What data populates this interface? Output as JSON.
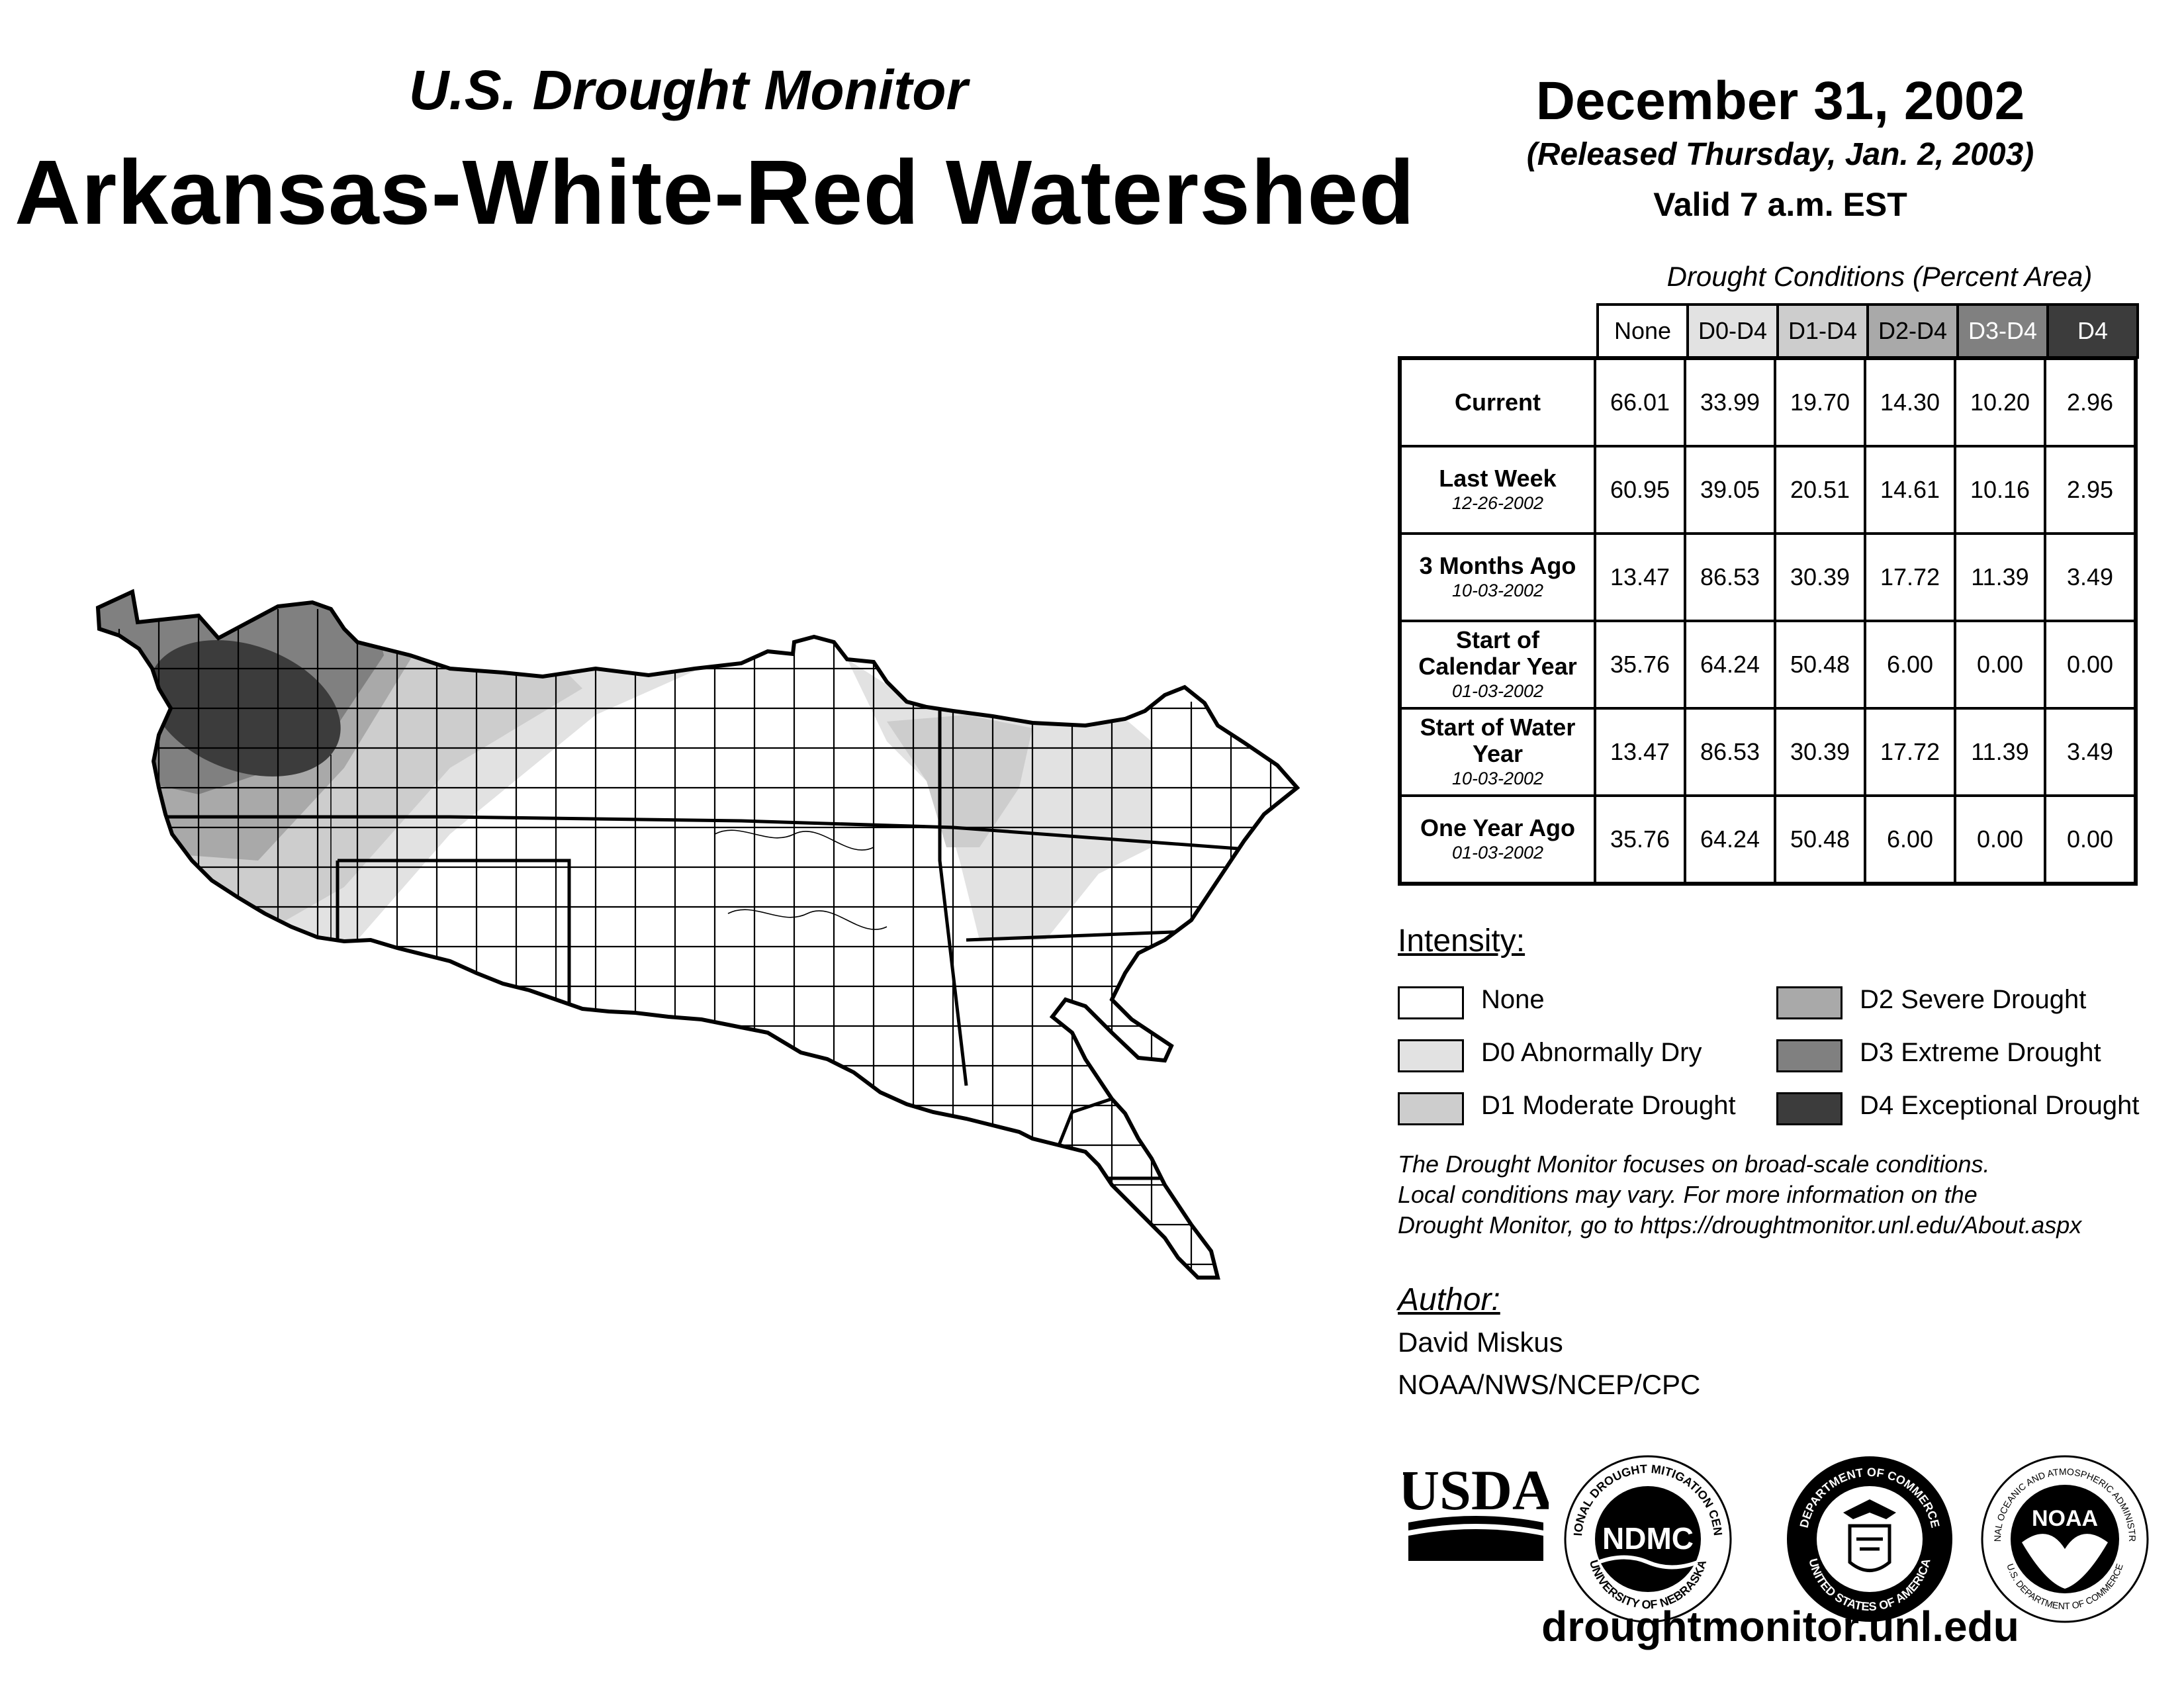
{
  "header": {
    "subtitle": "U.S. Drought Monitor",
    "title": "Arkansas-White-Red Watershed",
    "date": "December 31, 2002",
    "released": "(Released Thursday, Jan. 2, 2003)",
    "valid": "Valid 7 a.m. EST"
  },
  "table": {
    "caption": "Drought Conditions (Percent Area)",
    "columns": [
      "None",
      "D0-D4",
      "D1-D4",
      "D2-D4",
      "D3-D4",
      "D4"
    ],
    "column_colors": [
      "#ffffff",
      "#e2e2e2",
      "#cdcdcd",
      "#a9a9a9",
      "#808080",
      "#3c3c3c"
    ],
    "rows": [
      {
        "label": "Current",
        "date": "",
        "values": [
          "66.01",
          "33.99",
          "19.70",
          "14.30",
          "10.20",
          "2.96"
        ]
      },
      {
        "label": "Last Week",
        "date": "12-26-2002",
        "values": [
          "60.95",
          "39.05",
          "20.51",
          "14.61",
          "10.16",
          "2.95"
        ]
      },
      {
        "label": "3 Months Ago",
        "date": "10-03-2002",
        "values": [
          "13.47",
          "86.53",
          "30.39",
          "17.72",
          "11.39",
          "3.49"
        ]
      },
      {
        "label": "Start of Calendar Year",
        "date": "01-03-2002",
        "values": [
          "35.76",
          "64.24",
          "50.48",
          "6.00",
          "0.00",
          "0.00"
        ]
      },
      {
        "label": "Start of Water Year",
        "date": "10-03-2002",
        "values": [
          "13.47",
          "86.53",
          "30.39",
          "17.72",
          "11.39",
          "3.49"
        ]
      },
      {
        "label": "One Year Ago",
        "date": "01-03-2002",
        "values": [
          "35.76",
          "64.24",
          "50.48",
          "6.00",
          "0.00",
          "0.00"
        ]
      }
    ]
  },
  "legend": {
    "heading": "Intensity:",
    "items": [
      {
        "label": "None",
        "color": "#ffffff"
      },
      {
        "label": "D0 Abnormally Dry",
        "color": "#e2e2e2"
      },
      {
        "label": "D1 Moderate Drought",
        "color": "#cdcdcd"
      },
      {
        "label": "D2 Severe Drought",
        "color": "#a9a9a9"
      },
      {
        "label": "D3 Extreme Drought",
        "color": "#808080"
      },
      {
        "label": "D4 Exceptional Drought",
        "color": "#3c3c3c"
      }
    ]
  },
  "note": {
    "line1": "The Drought Monitor focuses on broad-scale conditions.",
    "line2": "Local conditions may vary. For more information on the",
    "line3": "Drought Monitor, go to https://droughtmonitor.unl.edu/About.aspx"
  },
  "author": {
    "heading": "Author:",
    "name": "David Miskus",
    "org": "NOAA/NWS/NCEP/CPC"
  },
  "logos": {
    "usda": "USDA",
    "ndmc": "NDMC",
    "ndmc_ring_top": "NATIONAL DROUGHT MITIGATION CENTER",
    "ndmc_ring_bottom": "UNIVERSITY OF NEBRASKA",
    "doc_ring_top": "DEPARTMENT OF COMMERCE",
    "doc_ring_bottom": "UNITED STATES OF AMERICA",
    "noaa": "NOAA",
    "noaa_ring_top": "NATIONAL OCEANIC AND ATMOSPHERIC ADMINISTRATION",
    "noaa_ring_bottom": "U.S. DEPARTMENT OF COMMERCE"
  },
  "website": "droughtmonitor.unl.edu"
}
